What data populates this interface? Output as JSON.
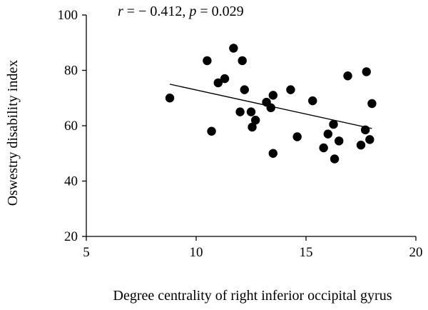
{
  "chart_data": {
    "type": "scatter",
    "title": "",
    "annotation": {
      "r_symbol": "r",
      "r_value": "= − 0.412,",
      "p_symbol": "p",
      "p_value": "= 0.029"
    },
    "xlabel": "Degree centrality of right inferior occipital gyrus",
    "ylabel": "Oswestry disability index",
    "xlim": [
      5,
      20
    ],
    "ylim": [
      20,
      100
    ],
    "xticks": [
      5,
      10,
      15,
      20
    ],
    "yticks": [
      20,
      40,
      60,
      80,
      100
    ],
    "grid": false,
    "points": [
      {
        "x": 8.8,
        "y": 70.0
      },
      {
        "x": 10.5,
        "y": 83.5
      },
      {
        "x": 10.7,
        "y": 58.0
      },
      {
        "x": 11.0,
        "y": 75.5
      },
      {
        "x": 11.3,
        "y": 77.0
      },
      {
        "x": 11.7,
        "y": 88.0
      },
      {
        "x": 12.0,
        "y": 65.0
      },
      {
        "x": 12.1,
        "y": 83.5
      },
      {
        "x": 12.2,
        "y": 73.0
      },
      {
        "x": 12.5,
        "y": 65.0
      },
      {
        "x": 12.55,
        "y": 59.5
      },
      {
        "x": 12.7,
        "y": 62.0
      },
      {
        "x": 13.2,
        "y": 68.5
      },
      {
        "x": 13.4,
        "y": 66.5
      },
      {
        "x": 13.5,
        "y": 71.0
      },
      {
        "x": 13.5,
        "y": 50.0
      },
      {
        "x": 14.3,
        "y": 73.0
      },
      {
        "x": 14.6,
        "y": 56.0
      },
      {
        "x": 15.3,
        "y": 69.0
      },
      {
        "x": 15.8,
        "y": 52.0
      },
      {
        "x": 16.0,
        "y": 57.0
      },
      {
        "x": 16.25,
        "y": 60.5
      },
      {
        "x": 16.3,
        "y": 48.0
      },
      {
        "x": 16.5,
        "y": 54.5
      },
      {
        "x": 16.9,
        "y": 78.0
      },
      {
        "x": 17.5,
        "y": 53.0
      },
      {
        "x": 17.7,
        "y": 58.5
      },
      {
        "x": 17.75,
        "y": 79.5
      },
      {
        "x": 17.9,
        "y": 55.0
      },
      {
        "x": 18.0,
        "y": 68.0
      }
    ],
    "trendline": {
      "x": [
        8.8,
        18.0
      ],
      "y": [
        75.0,
        59.0
      ]
    }
  }
}
